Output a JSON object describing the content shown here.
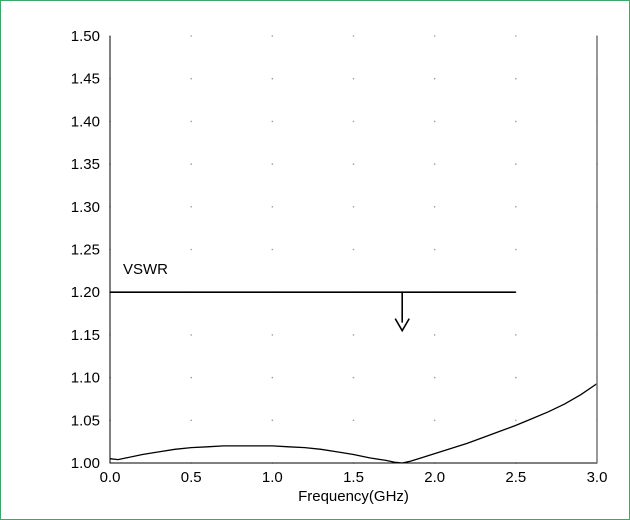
{
  "chart_data": {
    "type": "line",
    "xlabel": "Frequency(GHz)",
    "ylabel": "",
    "xlim": [
      0.0,
      3.0
    ],
    "ylim": [
      1.0,
      1.5
    ],
    "x_ticks": [
      "0.0",
      "0.5",
      "1.0",
      "1.5",
      "2.0",
      "2.5",
      "3.0"
    ],
    "y_ticks": [
      "1.00",
      "1.05",
      "1.10",
      "1.15",
      "1.20",
      "1.25",
      "1.30",
      "1.35",
      "1.40",
      "1.45",
      "1.50"
    ],
    "grid": "dotted",
    "colors": {
      "line": "#000000",
      "frame": "#3aa86b",
      "grid": "#9a9a9a"
    },
    "series": [
      {
        "x": [
          0.0,
          0.05,
          0.1,
          0.2,
          0.3,
          0.4,
          0.5,
          0.6,
          0.7,
          0.8,
          0.9,
          1.0,
          1.1,
          1.2,
          1.3,
          1.4,
          1.5,
          1.6,
          1.7,
          1.75,
          1.8,
          1.85,
          1.9,
          2.0,
          2.1,
          2.2,
          2.3,
          2.4,
          2.5,
          2.6,
          2.7,
          2.8,
          2.9,
          3.0
        ],
        "y": [
          1.005,
          1.004,
          1.006,
          1.01,
          1.013,
          1.016,
          1.018,
          1.019,
          1.02,
          1.02,
          1.02,
          1.02,
          1.019,
          1.018,
          1.016,
          1.013,
          1.01,
          1.006,
          1.003,
          1.001,
          1.0,
          1.002,
          1.005,
          1.011,
          1.017,
          1.023,
          1.03,
          1.037,
          1.044,
          1.052,
          1.06,
          1.069,
          1.08,
          1.093
        ]
      }
    ],
    "annotations": [
      {
        "type": "hline",
        "label": "VSWR",
        "y": 1.2,
        "x_start": 0.0,
        "x_end": 2.5
      },
      {
        "type": "arrow",
        "x": 1.8,
        "y_from": 1.2,
        "y_to": 1.155
      }
    ],
    "vline": {
      "x": 3.0
    }
  }
}
